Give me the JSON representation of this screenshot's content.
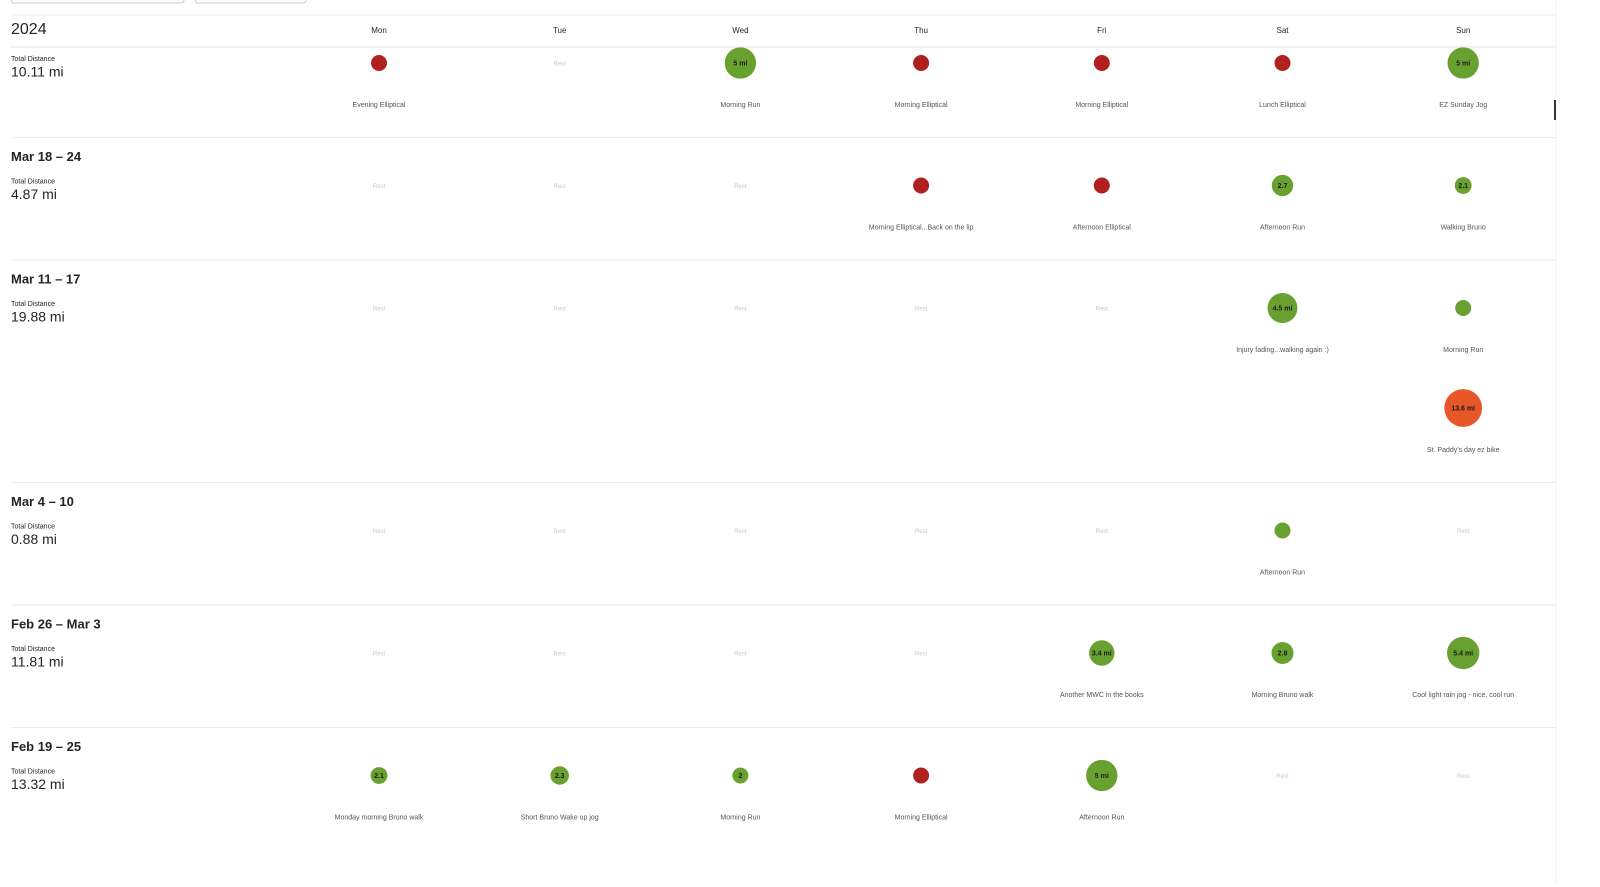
{
  "year": "2024",
  "day_names": [
    "Mon",
    "Tue",
    "Wed",
    "Thu",
    "Fri",
    "Sat",
    "Sun"
  ],
  "weeks": [
    {
      "total_label": "Total Distance",
      "total": "10.11 mi",
      "days": [
        [
          {
            "name": "Evening Elliptical",
            "color": "#b0201f"
          }
        ],
        "Rest",
        [
          {
            "name": "Morning Run",
            "distance": "5 mi",
            "color": "#68a130"
          }
        ],
        [
          {
            "name": "Morning Elliptical",
            "color": "#b0201f"
          }
        ],
        [
          {
            "name": "Morning Elliptical",
            "color": "#b0201f"
          }
        ],
        [
          {
            "name": "Lunch Elliptical",
            "color": "#b0201f"
          }
        ],
        [
          {
            "name": "EZ Sunday Jog",
            "distance": "5 mi",
            "color": "#68a130"
          }
        ]
      ]
    },
    {
      "label": "Mar 18 – 24",
      "total_label": "Total Distance",
      "total": "4.87 mi",
      "days": [
        "Rest",
        "Rest",
        "Rest",
        [
          {
            "name": "Morning Elliptical...Back on the lip",
            "color": "#b0201f"
          }
        ],
        [
          {
            "name": "Afternoon Elliptical",
            "color": "#b0201f"
          }
        ],
        [
          {
            "name": "Afternoon Run",
            "distance": "2.7",
            "color": "#68a130"
          }
        ],
        [
          {
            "name": "Walking Bruno",
            "distance": "2.1",
            "color": "#68a130"
          }
        ]
      ]
    },
    {
      "label": "Mar 11 – 17",
      "total_label": "Total Distance",
      "total": "19.88 mi",
      "days": [
        "Rest",
        "Rest",
        "Rest",
        "Rest",
        "Rest",
        [
          {
            "name": "Injury fading...walking again :)",
            "distance": "4.5 mi",
            "color": "#68a130"
          }
        ],
        [
          {
            "name": "Morning Run",
            "color": "#68a130"
          },
          {
            "name": "St. Paddy's day ez bike",
            "distance": "13.6 mi",
            "color": "#e8572a"
          }
        ]
      ]
    },
    {
      "label": "Mar 4 – 10",
      "total_label": "Total Distance",
      "total": "0.88 mi",
      "days": [
        "Rest",
        "Rest",
        "Rest",
        "Rest",
        "Rest",
        [
          {
            "name": "Afternoon Run",
            "color": "#68a130"
          }
        ],
        "Rest"
      ]
    },
    {
      "label": "Feb 26 – Mar 3",
      "total_label": "Total Distance",
      "total": "11.81 mi",
      "days": [
        "Rest",
        "Rest",
        "Rest",
        "Rest",
        [
          {
            "name": "Another MWC in the books",
            "distance": "3.4 mi",
            "color": "#68a130"
          }
        ],
        [
          {
            "name": "Morning Bruno walk",
            "distance": "2.8",
            "color": "#68a130"
          }
        ],
        [
          {
            "name": "Cool light rain jog - nice, cool run",
            "distance": "5.4 mi",
            "color": "#68a130"
          }
        ]
      ]
    },
    {
      "label": "Feb 19 – 25",
      "total_label": "Total Distance",
      "total": "13.32 mi",
      "days": [
        [
          {
            "name": "Monday morning Bruno walk",
            "distance": "2.1",
            "color": "#68a130"
          }
        ],
        [
          {
            "name": "Short Bruno Wake up jog",
            "distance": "2.3",
            "color": "#68a130"
          }
        ],
        [
          {
            "name": "Morning Run",
            "distance": "2",
            "color": "#68a130"
          }
        ],
        [
          {
            "name": "Morning Elliptical",
            "color": "#b0201f"
          }
        ],
        [
          {
            "name": "Afternoon Run",
            "distance": "5 mi",
            "color": "#68a130"
          }
        ],
        "Rest",
        "Rest"
      ]
    }
  ]
}
